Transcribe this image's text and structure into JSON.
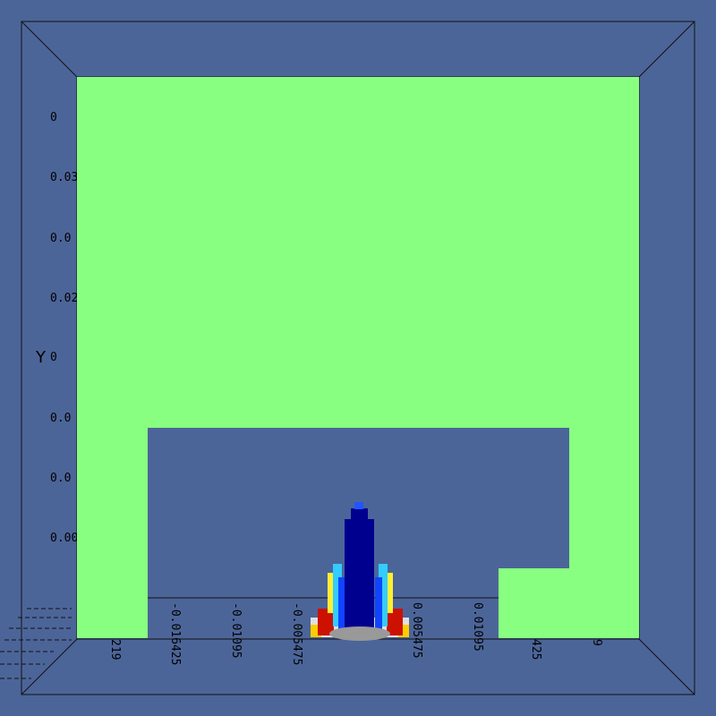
{
  "axes": {
    "y_title": "Y",
    "y_labels": [
      "0",
      "0.03",
      "0.0",
      "0.02",
      "0",
      "0.0",
      "0.0",
      "0.00"
    ],
    "x_labels": [
      "219",
      "-0.016425",
      "-0.01095",
      "-0.005475",
      "0.005475",
      "0.01095",
      "425",
      "9"
    ]
  }
}
